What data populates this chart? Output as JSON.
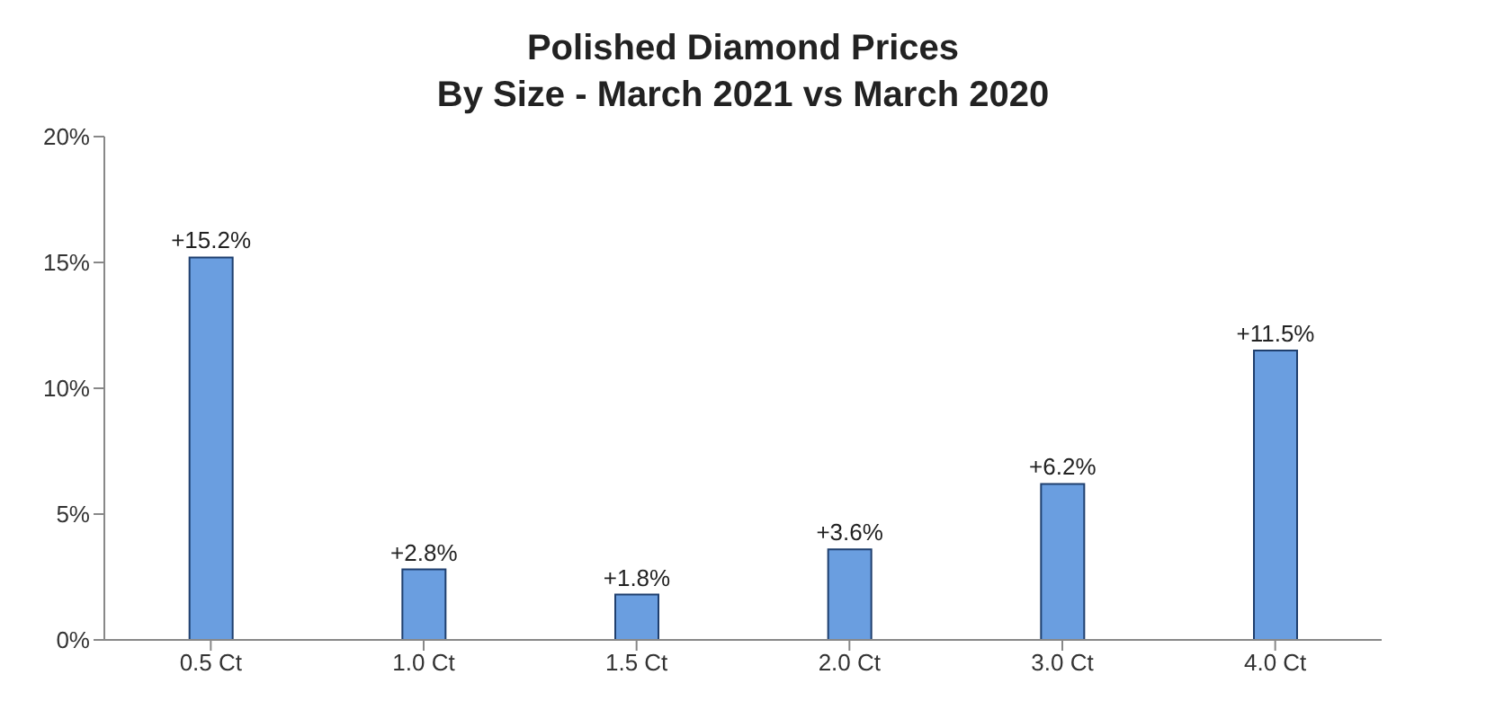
{
  "chart_data": {
    "type": "bar",
    "title": "Polished Diamond Prices",
    "subtitle": "By Size - March 2021 vs March 2020",
    "categories": [
      "0.5 Ct",
      "1.0 Ct",
      "1.5 Ct",
      "2.0 Ct",
      "3.0 Ct",
      "4.0 Ct"
    ],
    "values": [
      15.2,
      2.8,
      1.8,
      3.6,
      6.2,
      11.5
    ],
    "value_labels": [
      "+15.2%",
      "+2.8%",
      "+1.8%",
      "+3.6%",
      "+6.2%",
      "+11.5%"
    ],
    "color": "#6a9ee0",
    "ylim": [
      0,
      20
    ],
    "yticks": [
      {
        "value": 0,
        "label": "0%"
      },
      {
        "value": 5,
        "label": "5%"
      },
      {
        "value": 10,
        "label": "10%"
      },
      {
        "value": 15,
        "label": "15%"
      },
      {
        "value": 20,
        "label": "20%"
      }
    ],
    "grid": false,
    "legend": false
  }
}
